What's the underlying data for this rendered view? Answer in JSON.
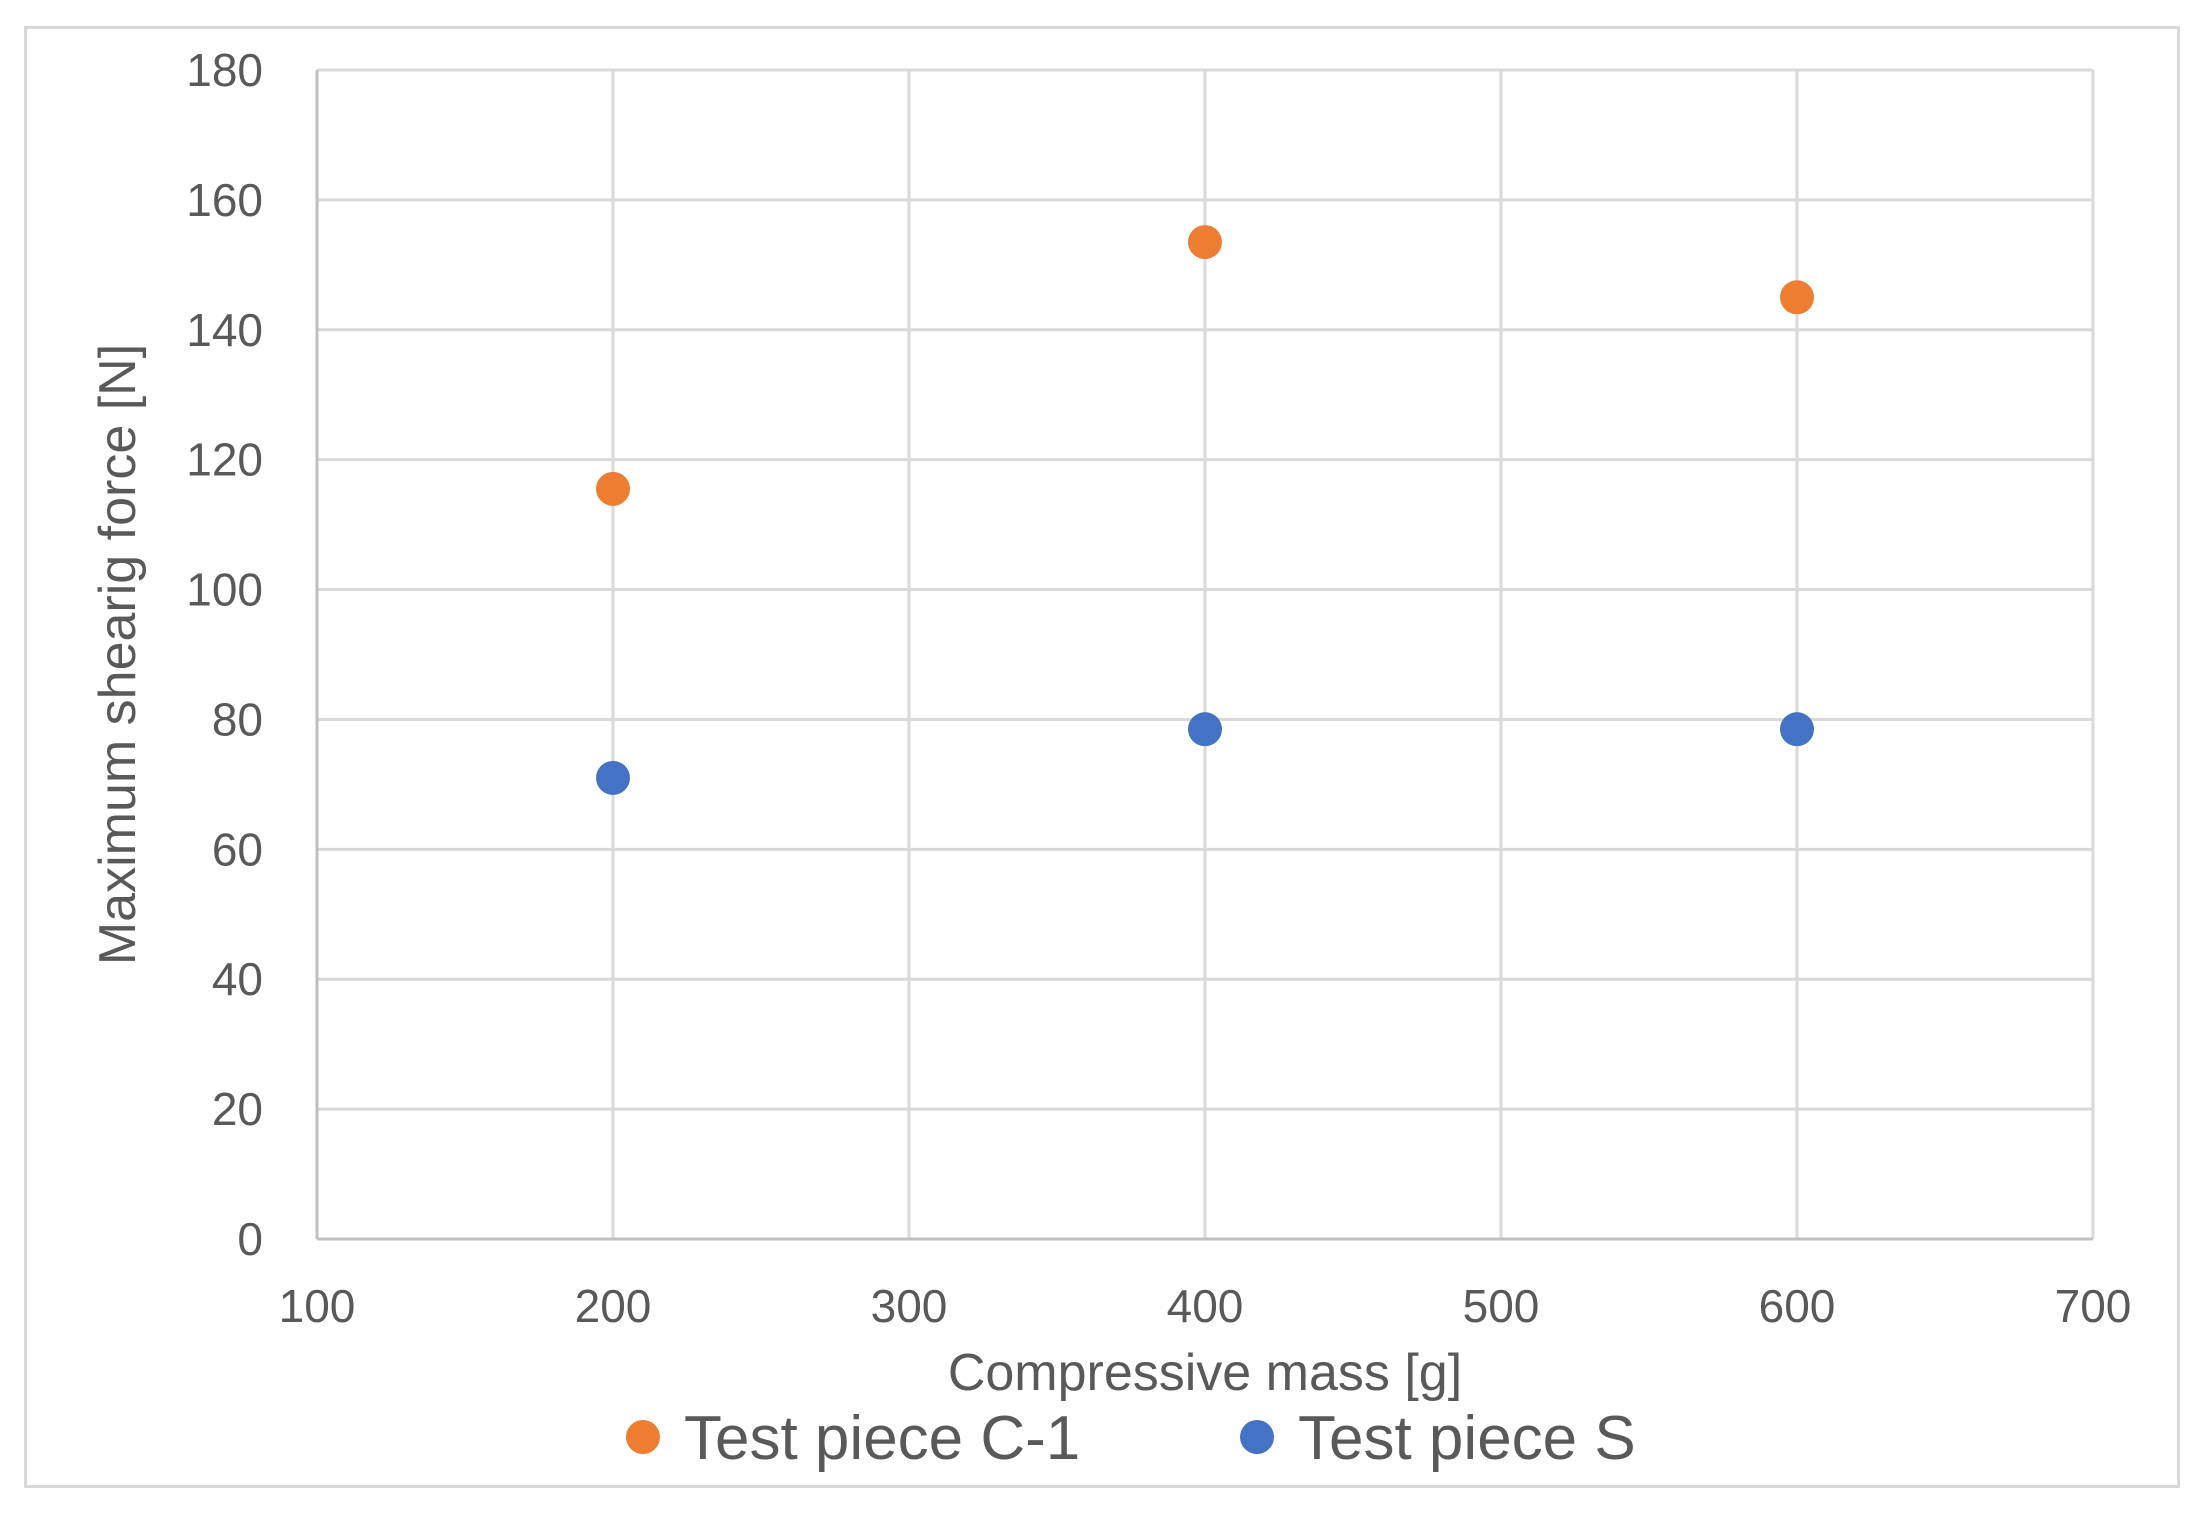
{
  "chart_data": {
    "type": "scatter",
    "title": "",
    "xlabel": "Compressive mass [g]",
    "ylabel": "Maximum shearig force [N]",
    "xlim": [
      100,
      700
    ],
    "ylim": [
      0,
      180
    ],
    "x_ticks": [
      "100",
      "200",
      "300",
      "400",
      "500",
      "600",
      "700"
    ],
    "y_ticks": [
      "0",
      "20",
      "40",
      "60",
      "80",
      "100",
      "120",
      "140",
      "160",
      "180"
    ],
    "grid": true,
    "legend_position": "bottom",
    "series": [
      {
        "name": "Test piece C-1",
        "color": "#ED7D31",
        "points": [
          {
            "x": 200,
            "y": 115.5
          },
          {
            "x": 400,
            "y": 153.5
          },
          {
            "x": 600,
            "y": 145
          }
        ]
      },
      {
        "name": "Test piece S",
        "color": "#4472C4",
        "points": [
          {
            "x": 200,
            "y": 71
          },
          {
            "x": 400,
            "y": 78.5
          },
          {
            "x": 600,
            "y": 78.5
          }
        ]
      }
    ]
  }
}
